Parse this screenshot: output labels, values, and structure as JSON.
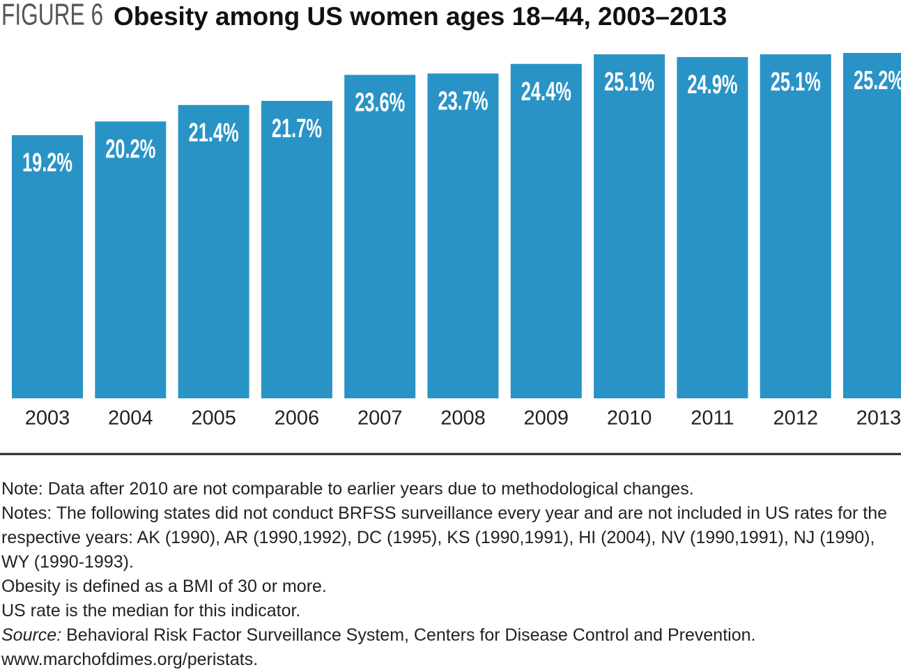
{
  "chart_data": {
    "type": "bar",
    "figure_label": "FIGURE 6",
    "title": "Obesity among US women ages 18–44, 2003–2013",
    "categories": [
      "2003",
      "2004",
      "2005",
      "2006",
      "2007",
      "2008",
      "2009",
      "2010",
      "2011",
      "2012",
      "2013"
    ],
    "values": [
      19.2,
      20.2,
      21.4,
      21.7,
      23.6,
      23.7,
      24.4,
      25.1,
      24.9,
      25.1,
      25.2
    ],
    "value_labels": [
      "19.2%",
      "20.2%",
      "21.4%",
      "21.7%",
      "23.6%",
      "23.7%",
      "24.4%",
      "25.1%",
      "24.9%",
      "25.1%",
      "25.2%"
    ],
    "color": "#2a93c6",
    "notes": [
      "Note: Data after 2010 are not comparable to earlier years due to methodological changes.",
      "Notes: The following states did not conduct BRFSS surveillance every year and are not included in US rates for the respective years: AK (1990), AR (1990,1992), DC (1995), KS (1990,1991), HI (2004), NV (1990,1991), NJ (1990), WY (1990-1993).",
      "Obesity is defined as a BMI of 30 or more.",
      "US rate is the median for this indicator."
    ],
    "source_label": "Source:",
    "source": "Behavioral Risk Factor Surveillance System, Centers for Disease Control and Prevention.",
    "url": "www.marchofdimes.org/peristats."
  }
}
